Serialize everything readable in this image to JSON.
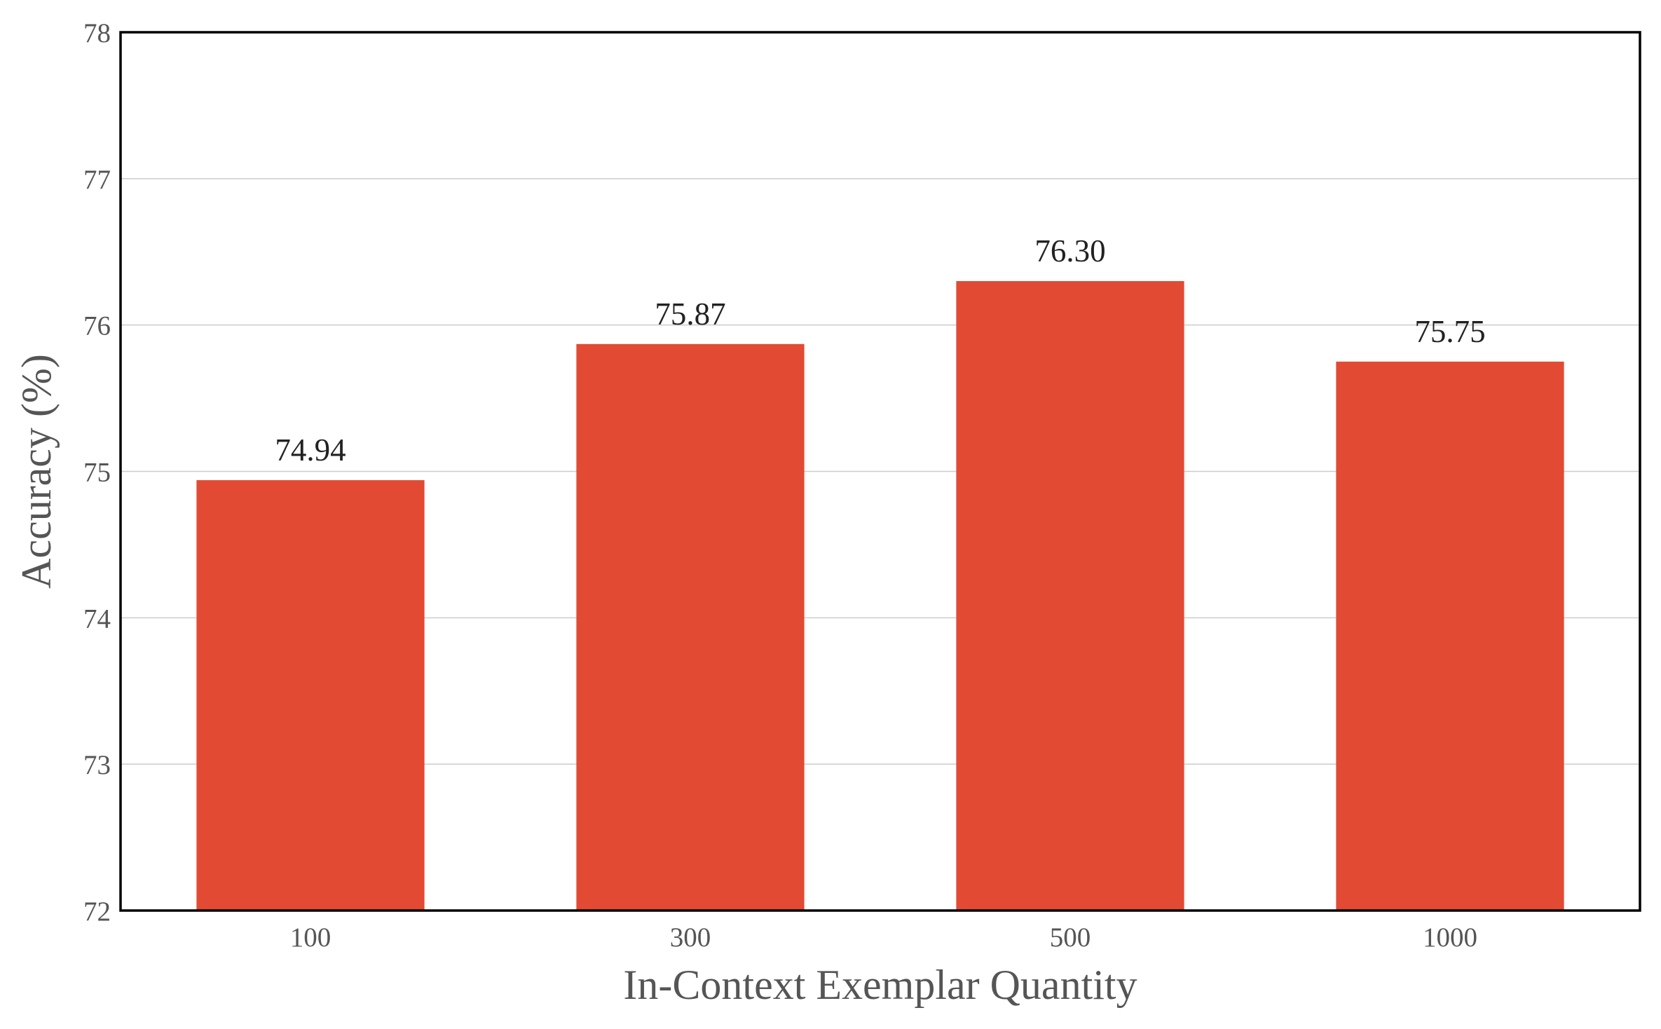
{
  "chart_data": {
    "type": "bar",
    "title": "",
    "xlabel": "In-Context Exemplar Quantity",
    "ylabel": "Accuracy (%)",
    "categories": [
      "100",
      "300",
      "500",
      "1000"
    ],
    "values": [
      74.94,
      75.87,
      76.3,
      75.75
    ],
    "data_labels": [
      "74.94",
      "75.87",
      "76.30",
      "75.75"
    ],
    "ylim": [
      72,
      78
    ],
    "yticks": [
      "72",
      "73",
      "74",
      "75",
      "76",
      "77",
      "78"
    ],
    "grid": "horizontal",
    "bar_color": "#e24a33",
    "legend": "none"
  }
}
